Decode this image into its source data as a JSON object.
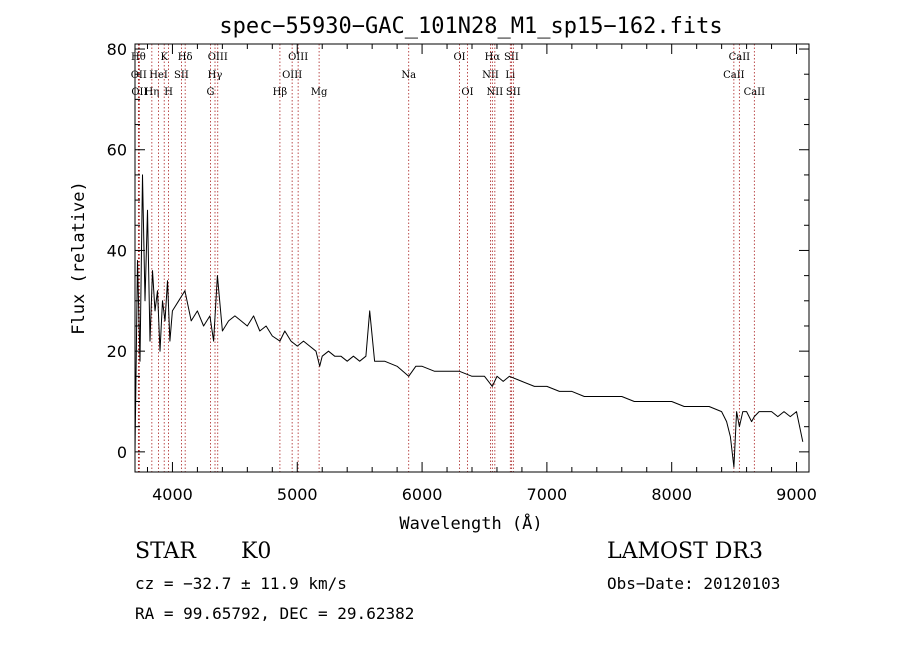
{
  "chart_data": {
    "type": "line",
    "title": "spec−55930−GAC_101N28_M1_sp15−162.fits",
    "xlabel": "Wavelength (Å)",
    "ylabel": "Flux (relative)",
    "xlim": [
      3700,
      9100
    ],
    "ylim": [
      -4,
      81
    ],
    "x_ticks": [
      4000,
      5000,
      6000,
      7000,
      8000,
      9000
    ],
    "y_ticks": [
      0,
      20,
      40,
      60,
      80
    ],
    "grid": false,
    "series": [
      {
        "name": "spectrum",
        "color": "#000000",
        "x": [
          3700,
          3720,
          3740,
          3760,
          3780,
          3800,
          3820,
          3840,
          3860,
          3880,
          3900,
          3920,
          3940,
          3960,
          3980,
          4000,
          4050,
          4100,
          4150,
          4200,
          4250,
          4300,
          4330,
          4360,
          4400,
          4450,
          4500,
          4550,
          4600,
          4650,
          4700,
          4750,
          4800,
          4861,
          4900,
          4950,
          5000,
          5050,
          5100,
          5150,
          5180,
          5200,
          5250,
          5300,
          5350,
          5400,
          5450,
          5500,
          5550,
          5580,
          5620,
          5700,
          5800,
          5893,
          5950,
          6000,
          6100,
          6200,
          6300,
          6400,
          6500,
          6563,
          6600,
          6650,
          6700,
          6800,
          6900,
          7000,
          7100,
          7200,
          7300,
          7400,
          7500,
          7600,
          7700,
          7800,
          7900,
          8000,
          8100,
          8200,
          8300,
          8400,
          8440,
          8470,
          8498,
          8520,
          8542,
          8570,
          8600,
          8640,
          8662,
          8700,
          8750,
          8800,
          8850,
          8900,
          8950,
          9000,
          9050
        ],
        "y": [
          0,
          38,
          18,
          55,
          30,
          48,
          22,
          36,
          28,
          32,
          20,
          30,
          26,
          34,
          22,
          28,
          30,
          32,
          26,
          28,
          25,
          27,
          22,
          35,
          24,
          26,
          27,
          26,
          25,
          27,
          24,
          25,
          23,
          22,
          24,
          22,
          21,
          22,
          21,
          20,
          17,
          19,
          20,
          19,
          19,
          18,
          19,
          18,
          19,
          28,
          18,
          18,
          17,
          15,
          17,
          17,
          16,
          16,
          16,
          15,
          15,
          13,
          15,
          14,
          15,
          14,
          13,
          13,
          12,
          12,
          11,
          11,
          11,
          11,
          10,
          10,
          10,
          10,
          9,
          9,
          9,
          8,
          6,
          3,
          -3,
          8,
          5,
          8,
          8,
          6,
          7,
          8,
          8,
          8,
          7,
          8,
          7,
          8,
          2
        ]
      }
    ],
    "line_markers": {
      "color": "#aa2222",
      "style": "dotted",
      "lines": [
        {
          "label": "Hθ",
          "wavelength": 3727,
          "row": 1
        },
        {
          "label": "OII",
          "wavelength": 3730,
          "row": 2
        },
        {
          "label": "OII",
          "wavelength": 3735,
          "row": 3
        },
        {
          "label": "Hη",
          "wavelength": 3835,
          "row": 3
        },
        {
          "label": "HeI",
          "wavelength": 3889,
          "row": 2
        },
        {
          "label": "K",
          "wavelength": 3934,
          "row": 1
        },
        {
          "label": "H",
          "wavelength": 3969,
          "row": 3
        },
        {
          "label": "SII",
          "wavelength": 4072,
          "row": 2
        },
        {
          "label": "Hδ",
          "wavelength": 4102,
          "row": 1
        },
        {
          "label": "G",
          "wavelength": 4305,
          "row": 3
        },
        {
          "label": "Hγ",
          "wavelength": 4341,
          "row": 2
        },
        {
          "label": "OIII",
          "wavelength": 4363,
          "row": 1
        },
        {
          "label": "Hβ",
          "wavelength": 4861,
          "row": 3
        },
        {
          "label": "OIII",
          "wavelength": 4959,
          "row": 2
        },
        {
          "label": "OIII",
          "wavelength": 5007,
          "row": 1
        },
        {
          "label": "Mg",
          "wavelength": 5175,
          "row": 3
        },
        {
          "label": "Na",
          "wavelength": 5893,
          "row": 2
        },
        {
          "label": "OI",
          "wavelength": 6300,
          "row": 1
        },
        {
          "label": "OI",
          "wavelength": 6364,
          "row": 3
        },
        {
          "label": "NII",
          "wavelength": 6548,
          "row": 2
        },
        {
          "label": "Hα",
          "wavelength": 6563,
          "row": 1
        },
        {
          "label": "NII",
          "wavelength": 6583,
          "row": 3
        },
        {
          "label": "Li",
          "wavelength": 6707,
          "row": 2
        },
        {
          "label": "SII",
          "wavelength": 6716,
          "row": 1
        },
        {
          "label": "SII",
          "wavelength": 6731,
          "row": 3
        },
        {
          "label": "CaII",
          "wavelength": 8498,
          "row": 2
        },
        {
          "label": "CaII",
          "wavelength": 8542,
          "row": 1
        },
        {
          "label": "CaII",
          "wavelength": 8662,
          "row": 3
        }
      ]
    }
  },
  "info": {
    "object_class": "STAR",
    "subclass": "K0",
    "survey": "LAMOST DR3",
    "cz": "cz = −32.7 ± 11.9 km/s",
    "obs_date": "Obs−Date: 20120103",
    "coords": "RA =  99.65792, DEC =  29.62382"
  }
}
